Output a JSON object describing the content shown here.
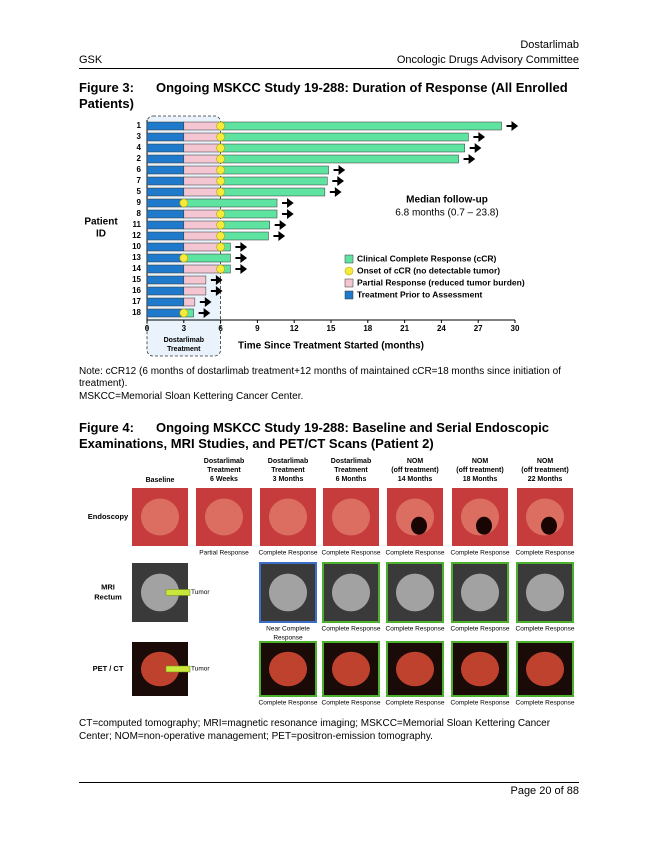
{
  "header": {
    "product": "Dostarlimab",
    "company": "GSK",
    "committee": "Oncologic Drugs Advisory Committee"
  },
  "figure3": {
    "label": "Figure 3:",
    "title": "Ongoing MSKCC Study 19-288: Duration of Response (All Enrolled Patients)"
  },
  "chart_data": {
    "type": "swimmer",
    "x_label": "Time Since Treatment Started (months)",
    "y_label": [
      "Patient",
      "ID"
    ],
    "box_label": [
      "Dostarlimab",
      "Treatment"
    ],
    "annotation": [
      "Median follow-up",
      "6.8 months (0.7 – 23.8)"
    ],
    "categories": [
      "1",
      "3",
      "4",
      "2",
      "6",
      "7",
      "5",
      "9",
      "8",
      "11",
      "12",
      "10",
      "13",
      "14",
      "15",
      "16",
      "17",
      "18"
    ],
    "xlim": [
      0,
      30
    ],
    "xticks": [
      0,
      3,
      6,
      9,
      12,
      15,
      18,
      21,
      24,
      27,
      30
    ],
    "series": [
      {
        "name": "Clinical Complete Response (cCR)",
        "color": "#5fe3a1",
        "values": [
          22.9,
          20.2,
          19.9,
          19.4,
          8.8,
          8.7,
          8.5,
          7.6,
          4.6,
          4.0,
          3.9,
          0.8,
          3.8,
          0.8,
          null,
          null,
          null,
          0.8
        ]
      },
      {
        "name": "Onset of cCR (no detectable tumor)",
        "color": "#f7ea3c",
        "x": [
          6,
          6,
          6,
          6,
          6,
          6,
          6,
          3,
          6,
          6,
          6,
          6,
          3,
          6,
          null,
          null,
          null,
          3
        ]
      },
      {
        "name": "Partial Response (reduced tumor burden)",
        "color": "#f4c6d2",
        "values": [
          3,
          3,
          3,
          3,
          3,
          3,
          3,
          null,
          3,
          3,
          3,
          3,
          null,
          3,
          1.8,
          1.8,
          0.9,
          null
        ]
      },
      {
        "name": "Treatment Prior to Assessment",
        "color": "#1f7acb",
        "values": [
          3,
          3,
          3,
          3,
          3,
          3,
          3,
          3,
          3,
          3,
          3,
          3,
          3,
          3,
          3,
          3,
          3,
          3
        ]
      }
    ]
  },
  "notes": [
    "Note: cCR12 (6 months of dostarlimab treatment+12 months of maintained cCR=18 months since initiation of treatment).",
    "MSKCC=Memorial Sloan Kettering Cancer Center."
  ],
  "figure4": {
    "label": "Figure 4:",
    "title": "Ongoing MSKCC Study 19-288: Baseline and Serial Endoscopic Examinations, MRI Studies, and PET/CT Scans (Patient 2)",
    "columns": [
      [
        "Baseline"
      ],
      [
        "Dostarlimab",
        "Treatment",
        "6 Weeks"
      ],
      [
        "Dostarlimab",
        "Treatment",
        "3 Months"
      ],
      [
        "Dostarlimab",
        "Treatment",
        "6 Months"
      ],
      [
        "NOM",
        "(off treatment)",
        "14 Months"
      ],
      [
        "NOM",
        "(off treatment)",
        "18  Months"
      ],
      [
        "NOM",
        "(off treatment)",
        "22 Months"
      ]
    ],
    "rows": [
      {
        "label": [
          "Endoscopy"
        ],
        "captions": [
          null,
          [
            "Partial Response"
          ],
          [
            "Complete Response"
          ],
          [
            "Complete Response"
          ],
          [
            "Complete Response"
          ],
          [
            "Complete Response"
          ],
          [
            "Complete Response"
          ]
        ]
      },
      {
        "label": [
          "MRI",
          "Rectum"
        ],
        "tumor": "Tumor",
        "captions": [
          null,
          null,
          [
            "Near Complete",
            "Response"
          ],
          [
            "Complete Response"
          ],
          [
            "Complete Response"
          ],
          [
            "Complete Response"
          ],
          [
            "Complete Response"
          ]
        ]
      },
      {
        "label": [
          "PET / CT"
        ],
        "tumor": "Tumor",
        "captions": [
          null,
          null,
          [
            "Complete Response"
          ],
          [
            "Complete Response"
          ],
          [
            "Complete Response"
          ],
          [
            "Complete Response"
          ],
          [
            "Complete Response"
          ]
        ]
      }
    ],
    "footnote": "CT=computed tomography; MRI=magnetic resonance imaging; MSKCC=Memorial Sloan Kettering Cancer Center; NOM=non-operative management; PET=positron-emission tomography."
  },
  "footer": {
    "page": "Page 20 of 88"
  }
}
